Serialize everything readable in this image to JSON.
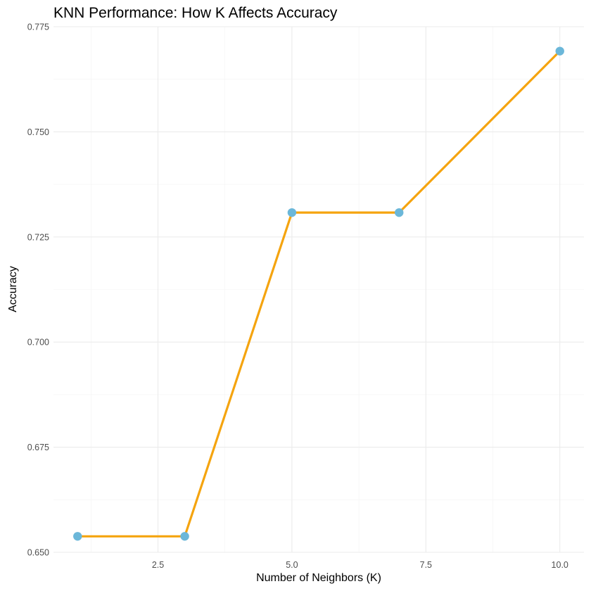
{
  "chart_data": {
    "type": "line",
    "title": "KNN Performance: How K Affects Accuracy",
    "xlabel": "Number of Neighbors (K)",
    "ylabel": "Accuracy",
    "x": [
      1,
      3,
      5,
      7,
      10
    ],
    "series": [
      {
        "values": [
          0.6538,
          0.6538,
          0.7308,
          0.7308,
          0.7692
        ]
      }
    ],
    "xlim": [
      0.55,
      10.45
    ],
    "ylim": [
      0.65,
      0.775
    ],
    "x_ticks": [
      2.5,
      5.0,
      7.5,
      10.0
    ],
    "x_tick_labels": [
      "2.5",
      "5.0",
      "7.5",
      "10.0"
    ],
    "y_ticks": [
      0.65,
      0.675,
      0.7,
      0.725,
      0.75,
      0.775
    ],
    "y_tick_labels": [
      "0.650",
      "0.675",
      "0.700",
      "0.725",
      "0.750",
      "0.775"
    ],
    "grid": true,
    "legend": "none",
    "colors": {
      "line": "#f5a40f",
      "point": "#6bb7d9"
    }
  }
}
